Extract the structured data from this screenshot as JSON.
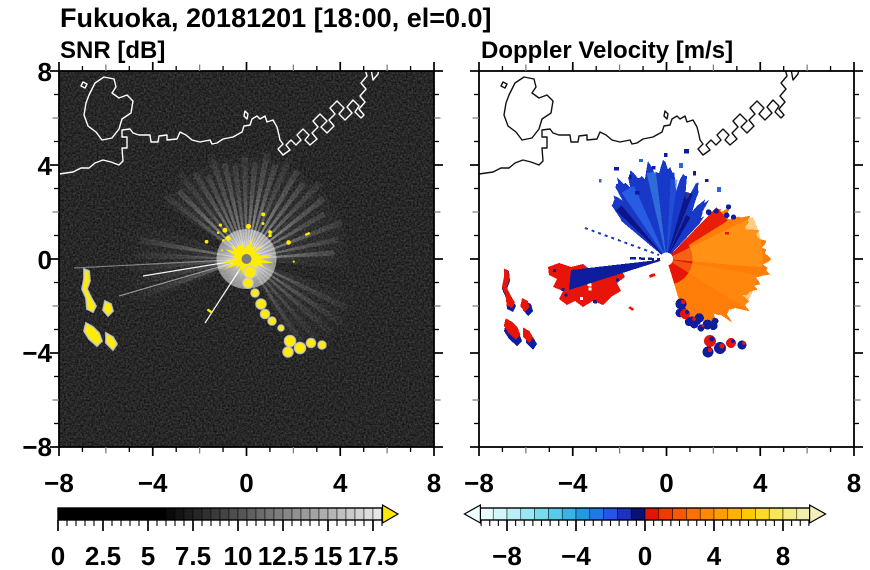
{
  "title": "Fukuoka, 20181201 [18:00, el=0.0]",
  "panels": {
    "snr": {
      "subtitle": "SNR [dB]",
      "x_tick_labels": [
        "−8",
        "−4",
        "0",
        "4",
        "8"
      ],
      "y_tick_labels": [
        "8",
        "4",
        "0",
        "−4",
        "−8"
      ]
    },
    "velocity": {
      "subtitle": "Doppler Velocity [m/s]",
      "x_tick_labels": [
        "−8",
        "−4",
        "0",
        "4",
        "8"
      ]
    }
  },
  "colorbars": {
    "snr": {
      "labels": [
        "0",
        "2.5",
        "5",
        "7.5",
        "10",
        "12.5",
        "15",
        "17.5"
      ],
      "range": [
        0,
        18
      ],
      "low_color": "#000000",
      "high_color": "#f0f0f0",
      "ramp_start_value": 5.5,
      "overflow_arrow_color": "#ffe900"
    },
    "velocity": {
      "labels": [
        "−8",
        "−4",
        "0",
        "4",
        "8"
      ],
      "range": [
        -9.6,
        9.6
      ],
      "segment_colors": [
        "#e8fcfd",
        "#d2f7fb",
        "#b8f0f8",
        "#99e7f4",
        "#78daef",
        "#57cbe9",
        "#36b5e3",
        "#1f9ade",
        "#2277e6",
        "#2754ec",
        "#1c30c2",
        "#0a1176",
        "#e51400",
        "#f23900",
        "#fa5700",
        "#fe7000",
        "#ff8800",
        "#ff9d00",
        "#ffb300",
        "#ffc900",
        "#fcdc24",
        "#f8e754",
        "#f4ec84",
        "#f1eeac"
      ],
      "underflow_arrow_color": "#effdfe",
      "overflow_arrow_color": "#f2efbd"
    }
  },
  "chart_data": [
    {
      "type": "heatmap",
      "suptitle": "Fukuoka, 20181201 [18:00, el=0.0]",
      "title": "SNR [dB]",
      "x_range": [
        -8,
        8
      ],
      "y_range": [
        -8,
        8
      ],
      "x_ticks": [
        -8,
        -4,
        0,
        4,
        8
      ],
      "y_ticks": [
        8,
        4,
        0,
        -4,
        -8
      ],
      "minor_tick_interval": 1,
      "radar_center": [
        0,
        0
      ],
      "colorbar": {
        "range": [
          0,
          18
        ],
        "ticks": [
          0,
          2.5,
          5,
          7.5,
          10,
          12.5,
          15,
          17.5
        ],
        "colormap": "black to white grayscale with yellow overflow arrow"
      },
      "features": [
        "dark speckled noise background (low SNR)",
        "white coastline of Hakata Bay, Fukuoka: mainland coast across middle, island near (-6,6), harbor piers near (2..4.5, 4.5..8)",
        "saturated yellow high-SNR blob around radar at (0,0) with gray dot at exact center",
        "radial bright gray beam fan from center toward NW through NE and E",
        "dimmer beam sectors toward W and SE, dark sectors toward SW and S",
        "thin bright rays toward WSW",
        "yellow ground-clutter patches near (-5.5,-0.5)..(-4.5,-3.2)",
        "yellow clutter arc from (0.2,-0.8) down to (3.2,-3.7)"
      ]
    },
    {
      "type": "heatmap",
      "title": "Doppler Velocity [m/s]",
      "x_range": [
        -8,
        8
      ],
      "y_range": [
        -8,
        8
      ],
      "x_ticks": [
        -8,
        -4,
        0,
        4,
        8
      ],
      "y_ticks": [
        8,
        4,
        0,
        -4,
        -8
      ],
      "minor_tick_interval": 1,
      "radar_center": [
        0,
        0
      ],
      "colorbar": {
        "range": [
          -9.6,
          9.6
        ],
        "ticks": [
          -8,
          -4,
          0,
          4,
          8
        ],
        "colormap": "pale cyan to blue to navy for negative; red to orange to yellow to cream for positive; arrows both ends"
      },
      "features": [
        "white background where no echo",
        "black coastline overlay (same geometry as SNR panel)",
        "blue negative-velocity fan N to NNE of radar out to about 3.5 units, ragged edge with navy speckles",
        "red/orange positive-velocity fan E to SSE out to about 4 units with red core near center and navy fringe at south edge",
        "narrow navy wedge toward WSW surrounded by red speckle patches near (-4..-2, -0.3..-1.5)",
        "red/navy clutter patches at islands near (-5.5,-0.5)..(-4.5,-3.2) and along arc (1,-2.5)..(3,-4)",
        "white dot at radar center (0,0)"
      ]
    }
  ]
}
